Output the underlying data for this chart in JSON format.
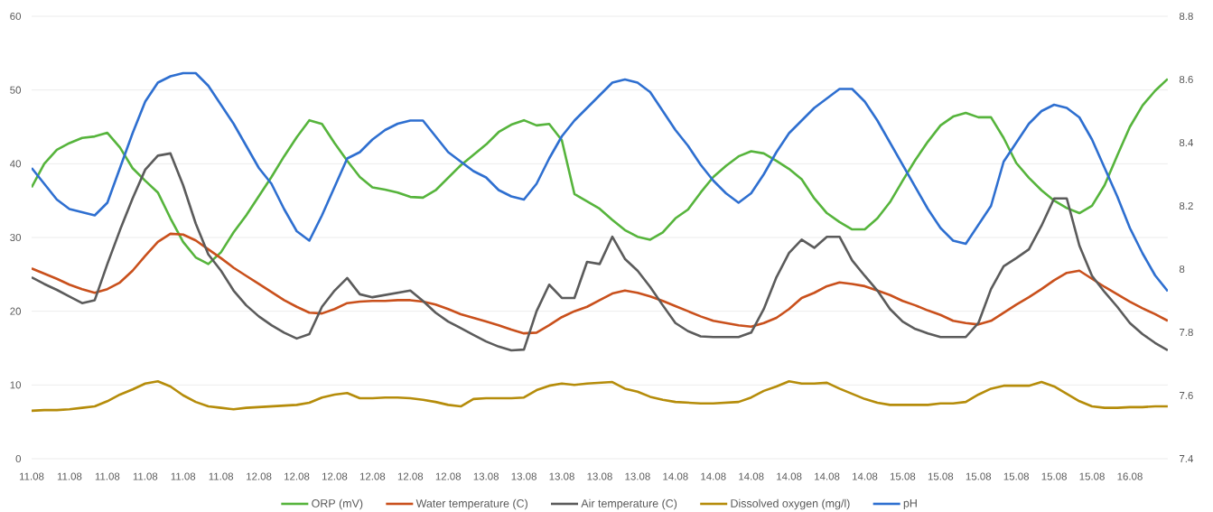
{
  "chart_data": {
    "type": "line",
    "categories": [
      "11.08",
      null,
      null,
      "11.08",
      null,
      null,
      "11.08",
      null,
      null,
      "11.08",
      null,
      null,
      "11.08",
      null,
      null,
      "11.08",
      null,
      null,
      "12.08",
      null,
      null,
      "12.08",
      null,
      null,
      "12.08",
      null,
      null,
      "12.08",
      null,
      null,
      "12.08",
      null,
      null,
      "12.08",
      null,
      null,
      "13.08",
      null,
      null,
      "13.08",
      null,
      null,
      "13.08",
      null,
      null,
      "13.08",
      null,
      null,
      "13.08",
      null,
      null,
      "14.08",
      null,
      null,
      "14.08",
      null,
      null,
      "14.08",
      null,
      null,
      "14.08",
      null,
      null,
      "14.08",
      null,
      null,
      "14.08",
      null,
      null,
      "15.08",
      null,
      null,
      "15.08",
      null,
      null,
      "15.08",
      null,
      null,
      "15.08",
      null,
      null,
      "15.08",
      null,
      null,
      "15.08",
      null,
      null,
      "16.08",
      null,
      null,
      null
    ],
    "series": [
      {
        "name": "ORP (mV)",
        "color": "#56b43c",
        "values": [
          36.8,
          40.0,
          41.9,
          42.8,
          43.5,
          43.7,
          44.2,
          42.2,
          39.4,
          37.7,
          36.1,
          32.6,
          29.4,
          27.3,
          26.4,
          28.0,
          30.7,
          33.0,
          35.6,
          38.2,
          41.0,
          43.6,
          45.9,
          45.4,
          42.8,
          40.4,
          38.2,
          36.8,
          36.5,
          36.1,
          35.5,
          35.4,
          36.4,
          38.1,
          39.8,
          41.2,
          42.6,
          44.3,
          45.3,
          45.9,
          45.2,
          45.4,
          43.2,
          35.9,
          34.9,
          33.9,
          32.4,
          31.0,
          30.1,
          29.7,
          30.7,
          32.6,
          33.8,
          36.1,
          38.2,
          39.7,
          41.0,
          41.7,
          41.4,
          40.4,
          39.3,
          37.9,
          35.3,
          33.3,
          32.1,
          31.1,
          31.1,
          32.6,
          34.8,
          37.7,
          40.5,
          43.0,
          45.2,
          46.4,
          46.9,
          46.3,
          46.3,
          43.5,
          40.1,
          38.1,
          36.4,
          35.0,
          34.0,
          33.3,
          34.3,
          37.1,
          41.1,
          45.0,
          47.9,
          49.9,
          51.5
        ]
      },
      {
        "name": "Water temperature (C)",
        "color": "#c9501c",
        "values": [
          25.8,
          25.1,
          24.4,
          23.6,
          23.0,
          22.5,
          23.0,
          23.9,
          25.5,
          27.5,
          29.4,
          30.5,
          30.4,
          29.6,
          28.4,
          27.2,
          25.9,
          24.8,
          23.7,
          22.6,
          21.5,
          20.6,
          19.8,
          19.7,
          20.3,
          21.1,
          21.3,
          21.4,
          21.4,
          21.5,
          21.5,
          21.3,
          20.9,
          20.3,
          19.6,
          19.1,
          18.6,
          18.1,
          17.5,
          17.0,
          17.1,
          18.1,
          19.2,
          20.0,
          20.6,
          21.5,
          22.4,
          22.8,
          22.5,
          22.0,
          21.4,
          20.7,
          20.0,
          19.3,
          18.7,
          18.4,
          18.1,
          17.9,
          18.4,
          19.1,
          20.3,
          21.8,
          22.5,
          23.4,
          23.9,
          23.7,
          23.4,
          22.8,
          22.2,
          21.4,
          20.8,
          20.1,
          19.5,
          18.7,
          18.4,
          18.2,
          18.7,
          19.8,
          20.9,
          21.9,
          23.0,
          24.2,
          25.2,
          25.5,
          24.4,
          23.3,
          22.3,
          21.3,
          20.4,
          19.6,
          18.7
        ]
      },
      {
        "name": "Air temperature (C)",
        "color": "#5b5b5b",
        "values": [
          24.6,
          23.7,
          22.9,
          22.0,
          21.1,
          21.5,
          26.4,
          31.0,
          35.3,
          39.2,
          41.1,
          41.4,
          37.1,
          31.9,
          27.7,
          25.5,
          22.8,
          20.8,
          19.3,
          18.1,
          17.1,
          16.3,
          16.9,
          20.6,
          22.8,
          24.5,
          22.3,
          21.9,
          22.2,
          22.5,
          22.8,
          21.4,
          19.8,
          18.6,
          17.7,
          16.8,
          15.9,
          15.2,
          14.7,
          14.8,
          20.0,
          23.6,
          21.8,
          21.8,
          26.7,
          26.4,
          30.1,
          27.1,
          25.5,
          23.3,
          20.8,
          18.4,
          17.3,
          16.6,
          16.5,
          16.5,
          16.5,
          17.1,
          20.3,
          24.6,
          27.9,
          29.7,
          28.6,
          30.1,
          30.1,
          26.9,
          24.8,
          22.8,
          20.3,
          18.6,
          17.6,
          17.0,
          16.5,
          16.5,
          16.5,
          18.4,
          23.0,
          26.1,
          27.2,
          28.4,
          31.6,
          35.3,
          35.3,
          28.9,
          24.8,
          22.6,
          20.6,
          18.4,
          16.9,
          15.7,
          14.7
        ]
      },
      {
        "name": "Dissolved oxygen (mg/l)",
        "color": "#b58c0a",
        "values": [
          6.5,
          6.6,
          6.6,
          6.7,
          6.9,
          7.1,
          7.8,
          8.7,
          9.4,
          10.2,
          10.5,
          9.8,
          8.6,
          7.7,
          7.1,
          6.9,
          6.7,
          6.9,
          7.0,
          7.1,
          7.2,
          7.3,
          7.6,
          8.3,
          8.7,
          8.9,
          8.2,
          8.2,
          8.3,
          8.3,
          8.2,
          8.0,
          7.7,
          7.3,
          7.1,
          8.1,
          8.2,
          8.2,
          8.2,
          8.3,
          9.3,
          9.9,
          10.2,
          10.0,
          10.2,
          10.3,
          10.4,
          9.5,
          9.1,
          8.4,
          8.0,
          7.7,
          7.6,
          7.5,
          7.5,
          7.6,
          7.7,
          8.3,
          9.2,
          9.8,
          10.5,
          10.2,
          10.2,
          10.3,
          9.5,
          8.8,
          8.1,
          7.6,
          7.3,
          7.3,
          7.3,
          7.3,
          7.5,
          7.5,
          7.7,
          8.7,
          9.5,
          9.9,
          9.9,
          9.9,
          10.4,
          9.8,
          8.8,
          7.8,
          7.1,
          6.9,
          6.9,
          7.0,
          7.0,
          7.1,
          7.1
        ]
      },
      {
        "name": "pH",
        "color": "#2e6fd0",
        "axis": "y2",
        "values": [
          8.32,
          8.27,
          8.22,
          8.19,
          8.18,
          8.17,
          8.21,
          8.32,
          8.43,
          8.53,
          8.59,
          8.61,
          8.62,
          8.62,
          8.58,
          8.52,
          8.46,
          8.39,
          8.32,
          8.27,
          8.19,
          8.12,
          8.09,
          8.17,
          8.26,
          8.35,
          8.37,
          8.41,
          8.44,
          8.46,
          8.47,
          8.47,
          8.42,
          8.37,
          8.34,
          8.31,
          8.29,
          8.25,
          8.23,
          8.22,
          8.27,
          8.35,
          8.42,
          8.47,
          8.51,
          8.55,
          8.59,
          8.6,
          8.59,
          8.56,
          8.5,
          8.44,
          8.39,
          8.33,
          8.28,
          8.24,
          8.21,
          8.24,
          8.3,
          8.37,
          8.43,
          8.47,
          8.51,
          8.54,
          8.57,
          8.57,
          8.53,
          8.47,
          8.4,
          8.33,
          8.26,
          8.19,
          8.13,
          8.09,
          8.08,
          8.14,
          8.2,
          8.34,
          8.4,
          8.46,
          8.5,
          8.52,
          8.51,
          8.48,
          8.41,
          8.32,
          8.23,
          8.13,
          8.05,
          7.98,
          7.93
        ]
      }
    ],
    "ylim": [
      0,
      60
    ],
    "yticks": [
      0,
      10,
      20,
      30,
      40,
      50,
      60
    ],
    "y2lim": [
      7.4,
      8.8
    ],
    "y2ticks": [
      7.4,
      7.6,
      7.8,
      8,
      8.2,
      8.4,
      8.6,
      8.8
    ],
    "grid": "y",
    "legend": "bottom"
  }
}
